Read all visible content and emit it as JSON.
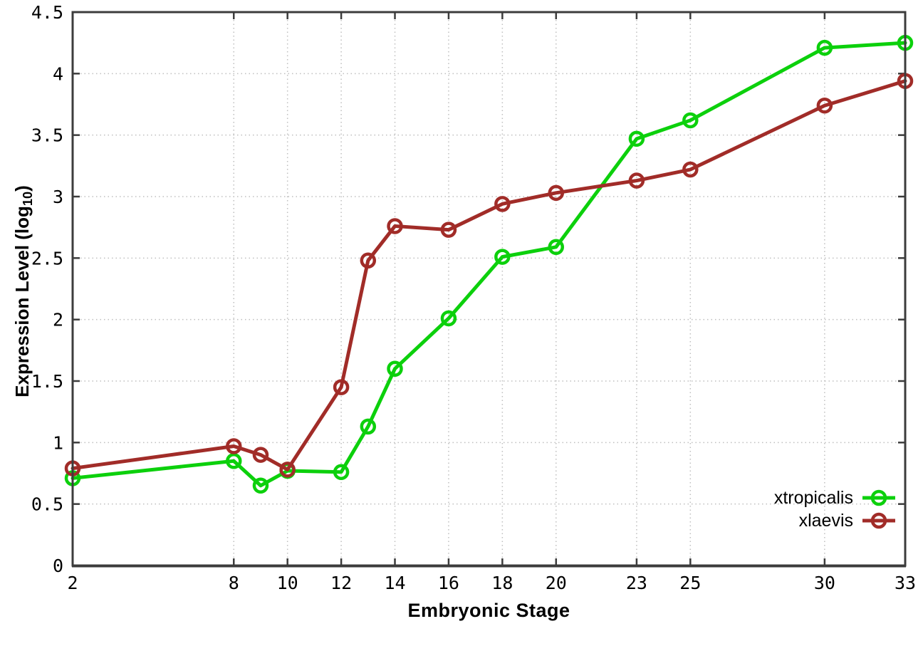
{
  "figure": {
    "background_color": "#ffffff",
    "border_color": "#3c3c3c",
    "grid_color": "#bfbfbf",
    "tick_label_color": "#000000"
  },
  "labels": {
    "xaxis_title": "Embryonic Stage",
    "yaxis_title_main": "Expression Level (log",
    "yaxis_title_sub": "10",
    "yaxis_title_close": ")"
  },
  "chart_data": {
    "type": "line",
    "title": "",
    "xlabel": "Embryonic Stage",
    "ylabel": "Expression Level (log10)",
    "xlim": [
      2,
      33
    ],
    "ylim": [
      0,
      4.5
    ],
    "x_ticks": [
      2,
      8,
      10,
      12,
      14,
      16,
      18,
      20,
      23,
      25,
      30,
      33
    ],
    "y_ticks": [
      0,
      0.5,
      1,
      1.5,
      2,
      2.5,
      3,
      3.5,
      4,
      4.5
    ],
    "grid": true,
    "grid_style": "dotted",
    "legend_position": "bottom-right-inside",
    "marker": "open-circle",
    "x": [
      2,
      8,
      9,
      10,
      12,
      13,
      14,
      16,
      18,
      20,
      23,
      25,
      30,
      33
    ],
    "series": [
      {
        "name": "xtropicalis",
        "color": "#0cd00c",
        "values": [
          0.71,
          0.85,
          0.65,
          0.77,
          0.76,
          1.13,
          1.6,
          2.01,
          2.51,
          2.59,
          3.47,
          3.62,
          4.21,
          4.25
        ]
      },
      {
        "name": "xlaevis",
        "color": "#a12c28",
        "values": [
          0.79,
          0.97,
          0.9,
          0.78,
          1.45,
          2.48,
          2.76,
          2.73,
          2.94,
          3.03,
          3.13,
          3.22,
          3.74,
          3.94
        ]
      }
    ]
  }
}
